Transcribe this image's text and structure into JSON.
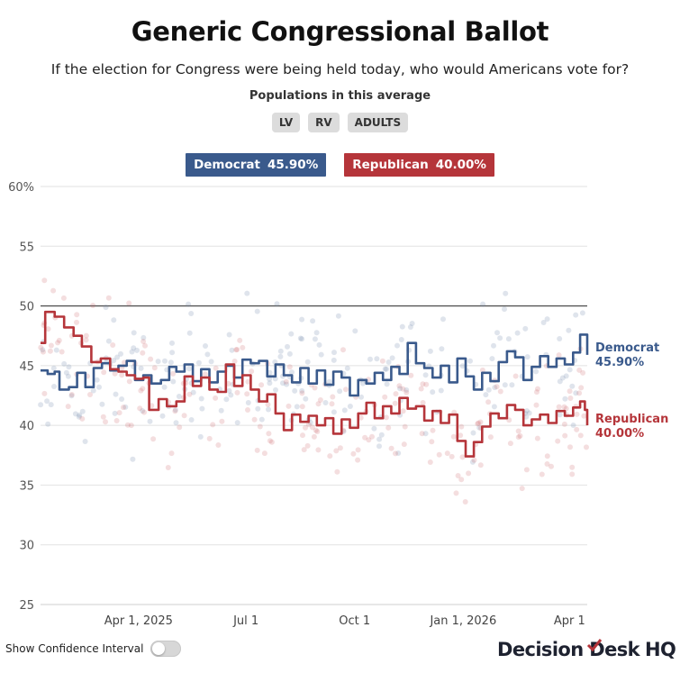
{
  "header": {
    "title": "Generic Congressional Ballot",
    "subtitle": "If the election for Congress were being held today, who would Americans vote for?",
    "populations_label": "Populations in this average",
    "populations": [
      "LV",
      "RV",
      "ADULTS"
    ]
  },
  "legend": {
    "democrat": {
      "name": "Democrat",
      "value": "45.90%",
      "color": "#3a5a8c"
    },
    "republican": {
      "name": "Republican",
      "value": "40.00%",
      "color": "#b5353a"
    }
  },
  "controls": {
    "confidence_label": "Show Confidence Interval",
    "confidence_on": false
  },
  "logo": {
    "text_a": "Decision Desk",
    "text_b": "HQ"
  },
  "chart_data": {
    "type": "line",
    "y_ticks": [
      "60%",
      "55",
      "50",
      "45",
      "40",
      "35",
      "30",
      "25"
    ],
    "ylim": [
      25,
      60
    ],
    "xlim": [
      "2025-01-08",
      "2026-04-16"
    ],
    "x_ticks": [
      {
        "date": "2025-04-01",
        "label": "Apr 1, 2025"
      },
      {
        "date": "2025-07-01",
        "label": "Jul 1"
      },
      {
        "date": "2025-10-01",
        "label": "Oct 1"
      },
      {
        "date": "2026-01-01",
        "label": "Jan 1, 2026"
      },
      {
        "date": "2026-04-01",
        "label": "Apr 1"
      }
    ],
    "reference_line": 50,
    "end_labels": {
      "democrat": [
        "Democrat",
        "45.90%"
      ],
      "republican": [
        "Republican",
        "40.00%"
      ]
    },
    "series": [
      {
        "name": "Democrat",
        "color": "#3a5a8c",
        "points": [
          [
            "2025-01-08",
            44.6
          ],
          [
            "2025-01-14",
            44.3
          ],
          [
            "2025-01-20",
            44.5
          ],
          [
            "2025-01-24",
            43.0
          ],
          [
            "2025-02-01",
            43.2
          ],
          [
            "2025-02-08",
            44.4
          ],
          [
            "2025-02-15",
            43.2
          ],
          [
            "2025-02-22",
            44.8
          ],
          [
            "2025-03-01",
            45.2
          ],
          [
            "2025-03-08",
            44.6
          ],
          [
            "2025-03-15",
            45.0
          ],
          [
            "2025-03-22",
            45.4
          ],
          [
            "2025-03-29",
            43.8
          ],
          [
            "2025-04-05",
            44.2
          ],
          [
            "2025-04-12",
            43.5
          ],
          [
            "2025-04-20",
            43.8
          ],
          [
            "2025-04-27",
            44.9
          ],
          [
            "2025-05-03",
            44.5
          ],
          [
            "2025-05-10",
            45.1
          ],
          [
            "2025-05-17",
            43.7
          ],
          [
            "2025-05-24",
            44.7
          ],
          [
            "2025-05-31",
            43.6
          ],
          [
            "2025-06-07",
            44.5
          ],
          [
            "2025-06-14",
            45.0
          ],
          [
            "2025-06-21",
            44.0
          ],
          [
            "2025-06-28",
            45.5
          ],
          [
            "2025-07-05",
            45.2
          ],
          [
            "2025-07-12",
            45.4
          ],
          [
            "2025-07-19",
            44.1
          ],
          [
            "2025-07-26",
            45.1
          ],
          [
            "2025-08-02",
            44.2
          ],
          [
            "2025-08-09",
            43.6
          ],
          [
            "2025-08-16",
            44.8
          ],
          [
            "2025-08-23",
            43.5
          ],
          [
            "2025-08-30",
            44.6
          ],
          [
            "2025-09-06",
            43.4
          ],
          [
            "2025-09-13",
            44.5
          ],
          [
            "2025-09-20",
            44.0
          ],
          [
            "2025-09-27",
            42.5
          ],
          [
            "2025-10-04",
            43.8
          ],
          [
            "2025-10-11",
            43.5
          ],
          [
            "2025-10-18",
            44.4
          ],
          [
            "2025-10-25",
            43.8
          ],
          [
            "2025-11-01",
            44.9
          ],
          [
            "2025-11-08",
            44.3
          ],
          [
            "2025-11-15",
            46.9
          ],
          [
            "2025-11-22",
            45.2
          ],
          [
            "2025-11-29",
            44.8
          ],
          [
            "2025-12-06",
            44.0
          ],
          [
            "2025-12-13",
            45.0
          ],
          [
            "2025-12-20",
            43.6
          ],
          [
            "2025-12-27",
            45.6
          ],
          [
            "2026-01-03",
            44.1
          ],
          [
            "2026-01-10",
            43.0
          ],
          [
            "2026-01-17",
            44.4
          ],
          [
            "2026-01-24",
            43.7
          ],
          [
            "2026-01-31",
            45.3
          ],
          [
            "2026-02-07",
            46.2
          ],
          [
            "2026-02-14",
            45.7
          ],
          [
            "2026-02-21",
            43.8
          ],
          [
            "2026-02-28",
            44.9
          ],
          [
            "2026-03-07",
            45.8
          ],
          [
            "2026-03-14",
            44.9
          ],
          [
            "2026-03-21",
            45.6
          ],
          [
            "2026-03-28",
            45.1
          ],
          [
            "2026-04-04",
            46.1
          ],
          [
            "2026-04-10",
            47.6
          ],
          [
            "2026-04-16",
            45.9
          ]
        ]
      },
      {
        "name": "Republican",
        "color": "#b5353a",
        "points": [
          [
            "2025-01-08",
            46.9
          ],
          [
            "2025-01-12",
            49.5
          ],
          [
            "2025-01-20",
            49.1
          ],
          [
            "2025-01-28",
            48.2
          ],
          [
            "2025-02-05",
            47.5
          ],
          [
            "2025-02-12",
            46.6
          ],
          [
            "2025-02-20",
            45.3
          ],
          [
            "2025-02-28",
            45.6
          ],
          [
            "2025-03-08",
            44.7
          ],
          [
            "2025-03-15",
            44.5
          ],
          [
            "2025-03-22",
            44.2
          ],
          [
            "2025-03-29",
            43.9
          ],
          [
            "2025-04-05",
            44.0
          ],
          [
            "2025-04-10",
            41.3
          ],
          [
            "2025-04-18",
            42.2
          ],
          [
            "2025-04-25",
            41.6
          ],
          [
            "2025-05-03",
            42.0
          ],
          [
            "2025-05-10",
            44.1
          ],
          [
            "2025-05-17",
            43.3
          ],
          [
            "2025-05-24",
            44.0
          ],
          [
            "2025-05-31",
            43.0
          ],
          [
            "2025-06-07",
            42.8
          ],
          [
            "2025-06-14",
            45.1
          ],
          [
            "2025-06-21",
            43.3
          ],
          [
            "2025-06-28",
            44.2
          ],
          [
            "2025-07-05",
            43.0
          ],
          [
            "2025-07-12",
            42.0
          ],
          [
            "2025-07-19",
            42.6
          ],
          [
            "2025-07-26",
            41.0
          ],
          [
            "2025-08-02",
            39.6
          ],
          [
            "2025-08-09",
            40.9
          ],
          [
            "2025-08-16",
            40.3
          ],
          [
            "2025-08-23",
            40.8
          ],
          [
            "2025-08-30",
            40.0
          ],
          [
            "2025-09-06",
            40.6
          ],
          [
            "2025-09-13",
            39.3
          ],
          [
            "2025-09-20",
            40.5
          ],
          [
            "2025-09-27",
            39.8
          ],
          [
            "2025-10-04",
            41.0
          ],
          [
            "2025-10-11",
            41.9
          ],
          [
            "2025-10-18",
            40.6
          ],
          [
            "2025-10-25",
            41.6
          ],
          [
            "2025-11-01",
            41.0
          ],
          [
            "2025-11-08",
            42.3
          ],
          [
            "2025-11-15",
            41.4
          ],
          [
            "2025-11-22",
            41.6
          ],
          [
            "2025-11-29",
            40.4
          ],
          [
            "2025-12-06",
            41.2
          ],
          [
            "2025-12-13",
            40.2
          ],
          [
            "2025-12-20",
            40.9
          ],
          [
            "2025-12-27",
            38.7
          ],
          [
            "2026-01-03",
            37.4
          ],
          [
            "2026-01-10",
            38.6
          ],
          [
            "2026-01-17",
            39.9
          ],
          [
            "2026-01-24",
            41.0
          ],
          [
            "2026-01-31",
            40.6
          ],
          [
            "2026-02-07",
            41.7
          ],
          [
            "2026-02-14",
            41.3
          ],
          [
            "2026-02-21",
            40.0
          ],
          [
            "2026-02-28",
            40.5
          ],
          [
            "2026-03-07",
            40.9
          ],
          [
            "2026-03-14",
            40.2
          ],
          [
            "2026-03-21",
            41.2
          ],
          [
            "2026-03-28",
            40.8
          ],
          [
            "2026-04-04",
            41.5
          ],
          [
            "2026-04-10",
            42.0
          ],
          [
            "2026-04-14",
            41.3
          ],
          [
            "2026-04-16",
            40.0
          ]
        ]
      }
    ]
  }
}
